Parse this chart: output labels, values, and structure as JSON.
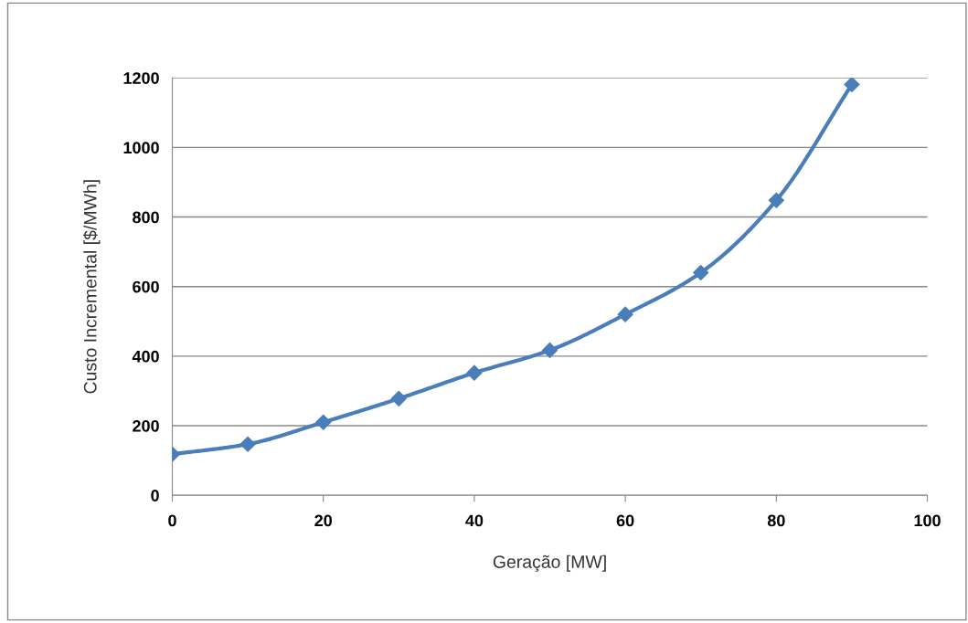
{
  "chart_data": {
    "type": "line",
    "xlabel": "Geração [MW]",
    "ylabel": "Custo Incremental [$/MWh]",
    "x": [
      0,
      10,
      20,
      30,
      40,
      50,
      60,
      70,
      80,
      90
    ],
    "series": [
      {
        "color": "#4a7ebb",
        "values": [
          118,
          147,
          210,
          278,
          352,
          417,
          520,
          640,
          848,
          1181
        ]
      }
    ],
    "xlim": [
      0,
      100
    ],
    "xticks": [
      0,
      20,
      40,
      60,
      80,
      100
    ],
    "ylim": [
      0,
      1200
    ],
    "yticks": [
      0,
      200,
      400,
      600,
      800,
      1000,
      1200
    ],
    "grid": "y",
    "legend": false,
    "marker": "diamond",
    "line_style": "solid"
  }
}
